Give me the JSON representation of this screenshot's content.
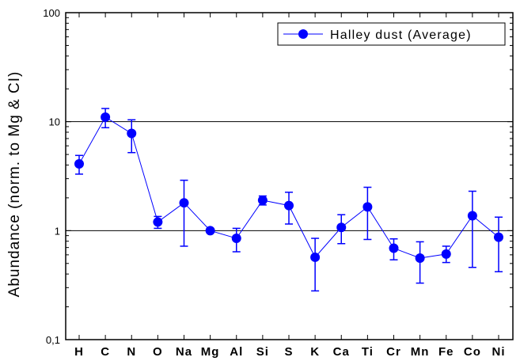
{
  "chart_data": {
    "type": "scatter",
    "y_scale": "log",
    "ylim": [
      0.1,
      100
    ],
    "y_ticks": [
      {
        "value": 0.1,
        "label": "0,1"
      },
      {
        "value": 1,
        "label": "1"
      },
      {
        "value": 10,
        "label": "10"
      },
      {
        "value": 100,
        "label": "100"
      }
    ],
    "reference_lines": [
      1,
      10
    ],
    "ylabel": "Abundance (norm. to Mg & CI)",
    "xlabel": "",
    "legend": {
      "position": "top-right",
      "label": "Halley dust (Average)"
    },
    "categories": [
      "H",
      "C",
      "N",
      "O",
      "Na",
      "Mg",
      "Al",
      "Si",
      "S",
      "K",
      "Ca",
      "Ti",
      "Cr",
      "Mn",
      "Fe",
      "Co",
      "Ni"
    ],
    "series": [
      {
        "name": "Halley dust (Average)",
        "color": "#0000ff",
        "values": [
          4.1,
          11.0,
          7.8,
          1.2,
          1.8,
          1.0,
          0.85,
          1.9,
          1.7,
          0.57,
          1.07,
          1.65,
          0.69,
          0.56,
          0.61,
          1.37,
          0.87
        ],
        "err_low": [
          3.3,
          8.8,
          5.2,
          1.05,
          0.72,
          1.0,
          0.64,
          1.72,
          1.15,
          0.28,
          0.76,
          0.83,
          0.54,
          0.33,
          0.51,
          0.46,
          0.42
        ],
        "err_high": [
          4.9,
          13.2,
          10.4,
          1.35,
          2.9,
          1.0,
          1.05,
          2.08,
          2.25,
          0.85,
          1.4,
          2.5,
          0.84,
          0.79,
          0.72,
          2.3,
          1.33
        ]
      }
    ]
  }
}
